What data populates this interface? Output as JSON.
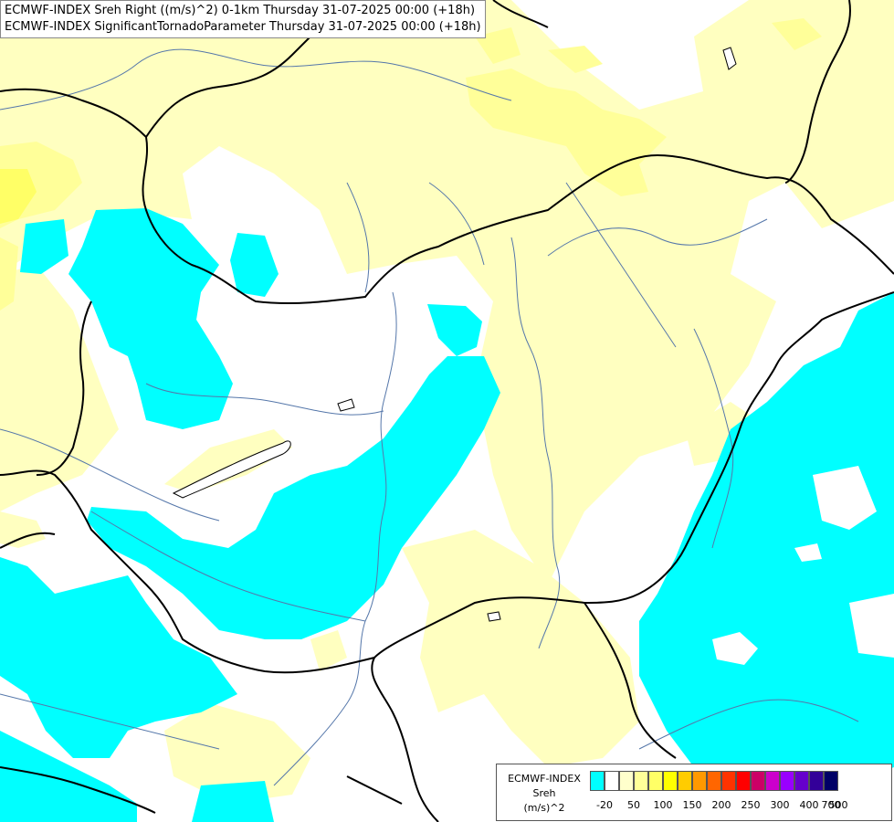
{
  "title": {
    "line1": "ECMWF-INDEX Sreh Right ((m/s)^2) 0-1km Thursday 31-07-2025 00:00 (+18h)",
    "line2": "ECMWF-INDEX SignificantTornadoParameter Thursday 31-07-2025 00:00 (+18h)"
  },
  "legend": {
    "model": "ECMWF-INDEX",
    "param": "Sreh",
    "unit": "(m/s)^2",
    "ticks": [
      "-20",
      "50",
      "100",
      "150",
      "200",
      "250",
      "300",
      "400",
      "500",
      "700"
    ],
    "colors": [
      "#00ffff",
      "#ffffff",
      "#ffffcc",
      "#ffff99",
      "#ffff66",
      "#ffff00",
      "#ffcc00",
      "#ff9900",
      "#ff6600",
      "#ff3300",
      "#ff0000",
      "#cc0066",
      "#cc00cc",
      "#9900ff",
      "#6600cc",
      "#330099",
      "#000066"
    ]
  },
  "colors": {
    "cyan": "#00ffff",
    "light_yellow": "#ffffc0",
    "pale_yellow": "#ffff99",
    "yellow": "#ffff66",
    "border": "#000000",
    "river": "#5577aa"
  }
}
